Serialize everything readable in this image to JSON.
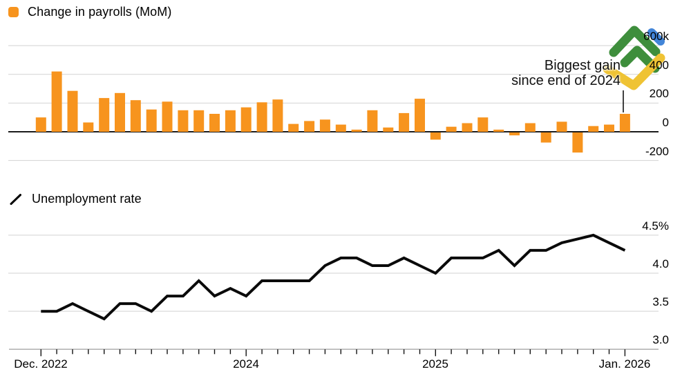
{
  "style": {
    "background": "#ffffff",
    "grid_color": "#D2D2D2",
    "zero_line_color": "#1A1A1A",
    "axis_line_color": "#AFAFAF",
    "tick_color": "#111111",
    "pointer_line_color": "#111111",
    "logo": {
      "green": "#3E8E3C",
      "yellow": "#EFC334",
      "blue": "#4285D8"
    }
  },
  "x_axis": {
    "labels": [
      {
        "label": "Dec. 2022",
        "month": 0
      },
      {
        "label": "2024",
        "month": 13
      },
      {
        "label": "2025",
        "month": 25
      },
      {
        "label": "Jan. 2026",
        "month": 37
      }
    ],
    "major_tick_months": [
      0,
      13,
      25,
      37
    ]
  },
  "chart_data": [
    {
      "type": "bar",
      "title": "Change in payrolls (MoM)",
      "unit": "thousands of jobs, month over month",
      "bar_color": "#F7941E",
      "legend_swatch": "orange-rounded-square",
      "categories": [
        "Dec 2022",
        "Jan 2023",
        "Feb 2023",
        "Mar 2023",
        "Apr 2023",
        "May 2023",
        "Jun 2023",
        "Jul 2023",
        "Aug 2023",
        "Sep 2023",
        "Oct 2023",
        "Nov 2023",
        "Dec 2023",
        "Jan 2024",
        "Feb 2024",
        "Mar 2024",
        "Apr 2024",
        "May 2024",
        "Jun 2024",
        "Jul 2024",
        "Aug 2024",
        "Sep 2024",
        "Oct 2024",
        "Nov 2024",
        "Dec 2024",
        "Jan 2025",
        "Feb 2025",
        "Mar 2025",
        "Apr 2025",
        "May 2025",
        "Jun 2025",
        "Jul 2025",
        "Aug 2025",
        "Sep 2025",
        "Oct 2025",
        "Nov 2025",
        "Dec 2025",
        "Jan 2026"
      ],
      "values": [
        100,
        420,
        285,
        65,
        235,
        270,
        220,
        155,
        210,
        150,
        150,
        125,
        150,
        170,
        205,
        225,
        55,
        75,
        85,
        50,
        15,
        150,
        30,
        130,
        230,
        -50,
        35,
        60,
        100,
        15,
        -20,
        60,
        -70,
        70,
        -140,
        40,
        50,
        125
      ],
      "ylim": [
        -280,
        650
      ],
      "yticks": [
        {
          "label": "600k",
          "value": 600
        },
        {
          "label": "400",
          "value": 400
        },
        {
          "label": "200",
          "value": 200
        },
        {
          "label": "0",
          "value": 0
        },
        {
          "label": "-200",
          "value": -200
        }
      ],
      "grid": true,
      "legend_position": "top-left",
      "annotation": {
        "line1": "Biggest gain",
        "line2": "since end of 2024",
        "points_to_category": "Jan 2026"
      }
    },
    {
      "type": "line",
      "title": "Unemployment rate",
      "unit": "%",
      "line_color": "#0A0A0A",
      "legend_swatch": "diagonal-line",
      "categories": [
        "Dec 2022",
        "Jan 2023",
        "Feb 2023",
        "Mar 2023",
        "Apr 2023",
        "May 2023",
        "Jun 2023",
        "Jul 2023",
        "Aug 2023",
        "Sep 2023",
        "Oct 2023",
        "Nov 2023",
        "Dec 2023",
        "Jan 2024",
        "Feb 2024",
        "Mar 2024",
        "Apr 2024",
        "May 2024",
        "Jun 2024",
        "Jul 2024",
        "Aug 2024",
        "Sep 2024",
        "Oct 2024",
        "Nov 2024",
        "Dec 2024",
        "Jan 2025",
        "Feb 2025",
        "Mar 2025",
        "Apr 2025",
        "May 2025",
        "Jun 2025",
        "Jul 2025",
        "Aug 2025",
        "Sep 2025",
        "Oct 2025",
        "Nov 2025",
        "Dec 2025",
        "Jan 2026"
      ],
      "values": [
        3.5,
        3.5,
        3.6,
        3.5,
        3.4,
        3.6,
        3.6,
        3.5,
        3.7,
        3.7,
        3.9,
        3.7,
        3.8,
        3.7,
        3.9,
        3.9,
        3.9,
        3.9,
        4.1,
        4.2,
        4.2,
        4.1,
        4.1,
        4.2,
        4.1,
        4.0,
        4.2,
        4.2,
        4.2,
        4.3,
        4.1,
        4.3,
        4.3,
        4.4,
        4.45,
        4.5,
        4.4,
        4.3
      ],
      "ylim": [
        2.95,
        4.6
      ],
      "yticks": [
        {
          "label": "4.5%",
          "value": 4.5
        },
        {
          "label": "4.0",
          "value": 4.0
        },
        {
          "label": "3.5",
          "value": 3.5
        },
        {
          "label": "3.0",
          "value": 3.0
        }
      ],
      "grid": true,
      "legend_position": "top-left"
    }
  ]
}
